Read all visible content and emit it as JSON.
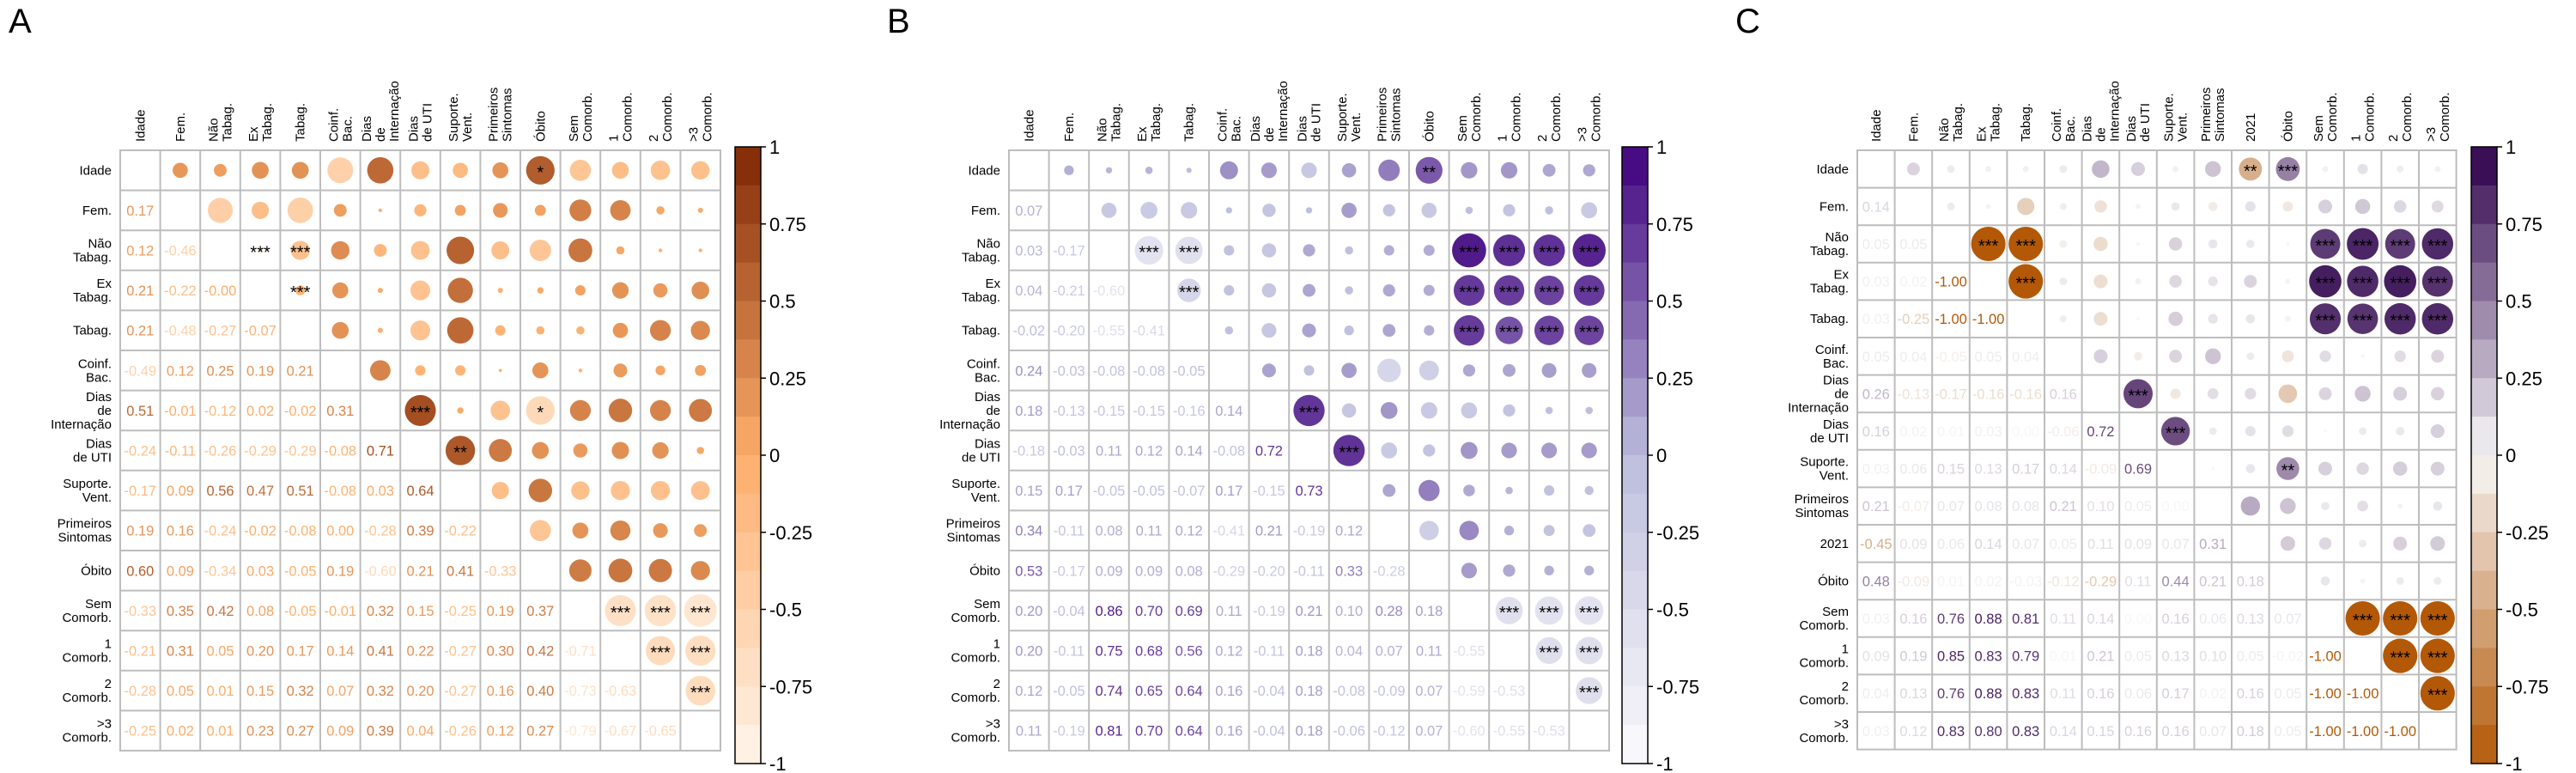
{
  "chart_data": [
    {
      "type": "heatmap",
      "panel_label": "A",
      "palette": "orange",
      "colors": {
        "neg": "#fff5eb",
        "mid": "#fdae6b",
        "pos": "#7f2704"
      },
      "col_labels": [
        [
          "Idade"
        ],
        [
          "Fem."
        ],
        [
          "Não",
          "Tabag."
        ],
        [
          "Ex",
          "Tabag."
        ],
        [
          "Tabag."
        ],
        [
          "Coinf.",
          "Bac."
        ],
        [
          "Dias",
          "de",
          "Internação"
        ],
        [
          "Dias",
          "de UTI"
        ],
        [
          "Suporte.",
          "Vent."
        ],
        [
          "Primeiros",
          "Sintomas"
        ],
        [
          "Óbito"
        ],
        [
          "Sem",
          "Comorb."
        ],
        [
          "1",
          "Comorb."
        ],
        [
          "2",
          "Comorb."
        ],
        [
          ">3",
          "Comorb."
        ]
      ],
      "row_labels": [
        [
          "Idade"
        ],
        [
          "Fem."
        ],
        [
          "Não",
          "Tabag."
        ],
        [
          "Ex",
          "Tabag."
        ],
        [
          "Tabag."
        ],
        [
          "Coinf.",
          "Bac."
        ],
        [
          "Dias",
          "de",
          "Internação"
        ],
        [
          "Dias",
          "de UTI"
        ],
        [
          "Suporte.",
          "Vent."
        ],
        [
          "Primeiros",
          "Sintomas"
        ],
        [
          "Óbito"
        ],
        [
          "Sem",
          "Comorb."
        ],
        [
          "1",
          "Comorb."
        ],
        [
          "2",
          "Comorb."
        ],
        [
          ">3",
          "Comorb."
        ]
      ],
      "lower": [
        [],
        [
          "0.17"
        ],
        [
          "0.12",
          "-0.46"
        ],
        [
          "0.21",
          "-0.22",
          "-0.00"
        ],
        [
          "0.21",
          "-0.48",
          "-0.27",
          "-0.07"
        ],
        [
          "-0.49",
          "0.12",
          "0.25",
          "0.19",
          "0.21"
        ],
        [
          "0.51",
          "-0.01",
          "-0.12",
          "0.02",
          "-0.02",
          "0.31"
        ],
        [
          "-0.24",
          "-0.11",
          "-0.26",
          "-0.29",
          "-0.29",
          "-0.08",
          "0.71"
        ],
        [
          "-0.17",
          "0.09",
          "0.56",
          "0.47",
          "0.51",
          "-0.08",
          "0.03",
          "0.64"
        ],
        [
          "0.19",
          "0.16",
          "-0.24",
          "-0.02",
          "-0.08",
          "0.00",
          "-0.28",
          "0.39",
          "-0.22"
        ],
        [
          "0.60",
          "0.09",
          "-0.34",
          "0.03",
          "-0.05",
          "0.19",
          "-0.60",
          "0.21",
          "0.41",
          "-0.33"
        ],
        [
          "-0.33",
          "0.35",
          "0.42",
          "0.08",
          "-0.05",
          "-0.01",
          "0.32",
          "0.15",
          "-0.25",
          "0.19",
          "0.37"
        ],
        [
          "-0.21",
          "0.31",
          "0.05",
          "0.20",
          "0.17",
          "0.14",
          "0.41",
          "0.22",
          "-0.27",
          "0.30",
          "0.42",
          "-0.71"
        ],
        [
          "-0.28",
          "0.05",
          "0.01",
          "0.15",
          "0.32",
          "0.07",
          "0.32",
          "0.20",
          "-0.27",
          "0.16",
          "0.40",
          "-0.73",
          "-0.63"
        ],
        [
          "-0.25",
          "0.02",
          "0.01",
          "0.23",
          "0.27",
          "0.09",
          "0.39",
          "0.04",
          "-0.26",
          "0.12",
          "0.27",
          "-0.79",
          "-0.67",
          "-0.65"
        ]
      ],
      "stars": [
        {
          "r": 0,
          "c": 10,
          "s": "*"
        },
        {
          "r": 2,
          "c": 3,
          "s": "***"
        },
        {
          "r": 2,
          "c": 4,
          "s": "***"
        },
        {
          "r": 3,
          "c": 4,
          "s": "***"
        },
        {
          "r": 6,
          "c": 7,
          "s": "***"
        },
        {
          "r": 6,
          "c": 10,
          "s": "*"
        },
        {
          "r": 7,
          "c": 8,
          "s": "**"
        },
        {
          "r": 11,
          "c": 12,
          "s": "***"
        },
        {
          "r": 11,
          "c": 13,
          "s": "***"
        },
        {
          "r": 11,
          "c": 14,
          "s": "***"
        },
        {
          "r": 12,
          "c": 13,
          "s": "***"
        },
        {
          "r": 12,
          "c": 14,
          "s": "***"
        },
        {
          "r": 13,
          "c": 14,
          "s": "***"
        }
      ],
      "colorbar_ticks": [
        "1",
        "0.75",
        "0.5",
        "0.25",
        "0",
        "-0.25",
        "-0.5",
        "-0.75",
        "-1"
      ],
      "value_range": [
        -1,
        1
      ]
    },
    {
      "type": "heatmap",
      "panel_label": "B",
      "palette": "purple",
      "colors": {
        "neg": "#fcfbfd",
        "mid": "#bcbddc",
        "pos": "#3f007d"
      },
      "col_labels": [
        [
          "Idade"
        ],
        [
          "Fem."
        ],
        [
          "Não",
          "Tabag."
        ],
        [
          "Ex",
          "Tabag."
        ],
        [
          "Tabag."
        ],
        [
          "Coinf.",
          "Bac."
        ],
        [
          "Dias",
          "de",
          "Internação"
        ],
        [
          "Dias",
          "de UTI"
        ],
        [
          "Suporte.",
          "Vent."
        ],
        [
          "Primeiros",
          "Sintomas"
        ],
        [
          "Óbito"
        ],
        [
          "Sem",
          "Comorb."
        ],
        [
          "1",
          "Comorb."
        ],
        [
          "2",
          "Comorb."
        ],
        [
          ">3",
          "Comorb."
        ]
      ],
      "row_labels": [
        [
          "Idade"
        ],
        [
          "Fem."
        ],
        [
          "Não",
          "Tabag."
        ],
        [
          "Ex",
          "Tabag."
        ],
        [
          "Tabag."
        ],
        [
          "Coinf.",
          "Bac."
        ],
        [
          "Dias",
          "de",
          "Internação"
        ],
        [
          "Dias",
          "de UTI"
        ],
        [
          "Suporte.",
          "Vent."
        ],
        [
          "Primeiros",
          "Sintomas"
        ],
        [
          "Óbito"
        ],
        [
          "Sem",
          "Comorb."
        ],
        [
          "1",
          "Comorb."
        ],
        [
          "2",
          "Comorb."
        ],
        [
          ">3",
          "Comorb."
        ]
      ],
      "lower": [
        [],
        [
          "0.07"
        ],
        [
          "0.03",
          "-0.17"
        ],
        [
          "0.04",
          "-0.21",
          "-0.60"
        ],
        [
          "-0.02",
          "-0.20",
          "-0.55",
          "-0.41"
        ],
        [
          "0.24",
          "-0.03",
          "-0.08",
          "-0.08",
          "-0.05"
        ],
        [
          "0.18",
          "-0.13",
          "-0.15",
          "-0.15",
          "-0.16",
          "0.14"
        ],
        [
          "-0.18",
          "-0.03",
          "0.11",
          "0.12",
          "0.14",
          "-0.08",
          "0.72"
        ],
        [
          "0.15",
          "0.17",
          "-0.05",
          "-0.05",
          "-0.07",
          "0.17",
          "-0.15",
          "0.73"
        ],
        [
          "0.34",
          "-0.11",
          "0.08",
          "0.11",
          "0.12",
          "-0.41",
          "0.21",
          "-0.19",
          "0.12"
        ],
        [
          "0.53",
          "-0.17",
          "0.09",
          "0.09",
          "0.08",
          "-0.29",
          "-0.20",
          "-0.11",
          "0.33",
          "-0.28"
        ],
        [
          "0.20",
          "-0.04",
          "0.86",
          "0.70",
          "0.69",
          "0.11",
          "-0.19",
          "0.21",
          "0.10",
          "0.28",
          "0.18"
        ],
        [
          "0.20",
          "-0.11",
          "0.75",
          "0.68",
          "0.56",
          "0.12",
          "-0.11",
          "0.18",
          "0.04",
          "0.07",
          "0.11",
          "-0.55"
        ],
        [
          "0.12",
          "-0.05",
          "0.74",
          "0.65",
          "0.64",
          "0.16",
          "-0.04",
          "0.18",
          "-0.08",
          "-0.09",
          "0.07",
          "-0.59",
          "-0.53"
        ],
        [
          "0.11",
          "-0.19",
          "0.81",
          "0.70",
          "0.64",
          "0.16",
          "-0.04",
          "0.18",
          "-0.06",
          "-0.12",
          "0.07",
          "-0.60",
          "-0.55",
          "-0.53"
        ]
      ],
      "stars": [
        {
          "r": 0,
          "c": 10,
          "s": "**"
        },
        {
          "r": 2,
          "c": 3,
          "s": "***"
        },
        {
          "r": 2,
          "c": 4,
          "s": "***"
        },
        {
          "r": 2,
          "c": 11,
          "s": "***"
        },
        {
          "r": 2,
          "c": 12,
          "s": "***"
        },
        {
          "r": 2,
          "c": 13,
          "s": "***"
        },
        {
          "r": 2,
          "c": 14,
          "s": "***"
        },
        {
          "r": 3,
          "c": 4,
          "s": "***"
        },
        {
          "r": 3,
          "c": 11,
          "s": "***"
        },
        {
          "r": 3,
          "c": 12,
          "s": "***"
        },
        {
          "r": 3,
          "c": 13,
          "s": "***"
        },
        {
          "r": 3,
          "c": 14,
          "s": "***"
        },
        {
          "r": 4,
          "c": 11,
          "s": "***"
        },
        {
          "r": 4,
          "c": 12,
          "s": "***"
        },
        {
          "r": 4,
          "c": 13,
          "s": "***"
        },
        {
          "r": 4,
          "c": 14,
          "s": "***"
        },
        {
          "r": 6,
          "c": 7,
          "s": "***"
        },
        {
          "r": 7,
          "c": 8,
          "s": "***"
        },
        {
          "r": 11,
          "c": 12,
          "s": "***"
        },
        {
          "r": 11,
          "c": 13,
          "s": "***"
        },
        {
          "r": 11,
          "c": 14,
          "s": "***"
        },
        {
          "r": 12,
          "c": 13,
          "s": "***"
        },
        {
          "r": 12,
          "c": 14,
          "s": "***"
        },
        {
          "r": 13,
          "c": 14,
          "s": "***"
        }
      ],
      "colorbar_ticks": [
        "1",
        "0.75",
        "0.5",
        "0.25",
        "0",
        "-0.25",
        "-0.5",
        "-0.75",
        "-1"
      ],
      "value_range": [
        -1,
        1
      ]
    },
    {
      "type": "heatmap",
      "panel_label": "C",
      "palette": "purple-orange",
      "colors": {
        "neg": "#b35806",
        "mid": "#f7f7f7",
        "pos": "#2d004b"
      },
      "col_labels": [
        [
          "Idade"
        ],
        [
          "Fem."
        ],
        [
          "Não",
          "Tabag."
        ],
        [
          "Ex",
          "Tabag."
        ],
        [
          "Tabag."
        ],
        [
          "Coinf.",
          "Bac."
        ],
        [
          "Dias",
          "de",
          "Internação"
        ],
        [
          "Dias",
          "de UTI"
        ],
        [
          "Suporte.",
          "Vent."
        ],
        [
          "Primeiros",
          "Sintomas"
        ],
        [
          "2021"
        ],
        [
          "Óbito"
        ],
        [
          "Sem",
          "Comorb."
        ],
        [
          "1",
          "Comorb."
        ],
        [
          "2",
          "Comorb."
        ],
        [
          ">3",
          "Comorb."
        ]
      ],
      "row_labels": [
        [
          "Idade"
        ],
        [
          "Fem."
        ],
        [
          "Não",
          "Tabag."
        ],
        [
          "Ex",
          "Tabag."
        ],
        [
          "Tabag."
        ],
        [
          "Coinf.",
          "Bac."
        ],
        [
          "Dias",
          "de",
          "Internação"
        ],
        [
          "Dias",
          "de UTI"
        ],
        [
          "Suporte.",
          "Vent."
        ],
        [
          "Primeiros",
          "Sintomas"
        ],
        [
          "2021"
        ],
        [
          "Óbito"
        ],
        [
          "Sem",
          "Comorb."
        ],
        [
          "1",
          "Comorb."
        ],
        [
          "2",
          "Comorb."
        ],
        [
          ">3",
          "Comorb."
        ]
      ],
      "lower": [
        [],
        [
          "0.14"
        ],
        [
          "0.05",
          "0.05"
        ],
        [
          "0.03",
          "0.02",
          "-1.00"
        ],
        [
          "0.03",
          "-0.25",
          "-1.00",
          "-1.00"
        ],
        [
          "0.05",
          "0.04",
          "-0.05",
          "0.05",
          "0.04"
        ],
        [
          "0.26",
          "-0.13",
          "-0.17",
          "-0.16",
          "-0.16",
          "0.16"
        ],
        [
          "0.16",
          "0.02",
          "0.01",
          "0.03",
          "0.00",
          "-0.06",
          "0.72"
        ],
        [
          "0.03",
          "0.06",
          "0.15",
          "0.13",
          "0.17",
          "0.14",
          "-0.09",
          "0.69"
        ],
        [
          "0.21",
          "-0.07",
          "0.07",
          "0.08",
          "0.08",
          "0.21",
          "0.10",
          "0.05",
          "0.00"
        ],
        [
          "-0.45",
          "0.09",
          "0.06",
          "0.14",
          "0.07",
          "0.05",
          "0.11",
          "0.09",
          "0.07",
          "0.31"
        ],
        [
          "0.48",
          "-0.09",
          "0.01",
          "0.02",
          "-0.03",
          "-0.12",
          "-0.29",
          "0.11",
          "0.44",
          "0.21",
          "0.18"
        ],
        [
          "0.03",
          "0.16",
          "0.76",
          "0.88",
          "0.81",
          "0.11",
          "0.14",
          "0.00",
          "0.16",
          "0.06",
          "0.13",
          "0.07"
        ],
        [
          "0.09",
          "0.19",
          "0.85",
          "0.83",
          "0.79",
          "0.01",
          "0.21",
          "0.05",
          "0.13",
          "0.10",
          "0.05",
          "-0.02",
          "-1.00"
        ],
        [
          "0.04",
          "0.13",
          "0.76",
          "0.88",
          "0.83",
          "0.11",
          "0.16",
          "0.06",
          "0.17",
          "0.02",
          "0.16",
          "0.05",
          "-1.00",
          "-1.00"
        ],
        [
          "0.03",
          "0.12",
          "0.83",
          "0.80",
          "0.83",
          "0.14",
          "0.15",
          "0.16",
          "0.16",
          "0.07",
          "0.18",
          "0.05",
          "-1.00",
          "-1.00",
          "-1.00"
        ]
      ],
      "stars": [
        {
          "r": 0,
          "c": 10,
          "s": "**"
        },
        {
          "r": 0,
          "c": 11,
          "s": "***"
        },
        {
          "r": 2,
          "c": 3,
          "s": "***"
        },
        {
          "r": 2,
          "c": 4,
          "s": "***"
        },
        {
          "r": 2,
          "c": 12,
          "s": "***"
        },
        {
          "r": 2,
          "c": 13,
          "s": "***"
        },
        {
          "r": 2,
          "c": 14,
          "s": "***"
        },
        {
          "r": 2,
          "c": 15,
          "s": "***"
        },
        {
          "r": 3,
          "c": 4,
          "s": "***"
        },
        {
          "r": 3,
          "c": 12,
          "s": "***"
        },
        {
          "r": 3,
          "c": 13,
          "s": "***"
        },
        {
          "r": 3,
          "c": 14,
          "s": "***"
        },
        {
          "r": 3,
          "c": 15,
          "s": "***"
        },
        {
          "r": 4,
          "c": 12,
          "s": "***"
        },
        {
          "r": 4,
          "c": 13,
          "s": "***"
        },
        {
          "r": 4,
          "c": 14,
          "s": "***"
        },
        {
          "r": 4,
          "c": 15,
          "s": "***"
        },
        {
          "r": 6,
          "c": 7,
          "s": "***"
        },
        {
          "r": 7,
          "c": 8,
          "s": "***"
        },
        {
          "r": 8,
          "c": 11,
          "s": "**"
        },
        {
          "r": 12,
          "c": 13,
          "s": "***"
        },
        {
          "r": 12,
          "c": 14,
          "s": "***"
        },
        {
          "r": 12,
          "c": 15,
          "s": "***"
        },
        {
          "r": 13,
          "c": 14,
          "s": "***"
        },
        {
          "r": 13,
          "c": 15,
          "s": "***"
        },
        {
          "r": 14,
          "c": 15,
          "s": "***"
        }
      ],
      "colorbar_ticks": [
        "1",
        "0.75",
        "0.5",
        "0.25",
        "0",
        "-0.25",
        "-0.5",
        "-0.75",
        "-1"
      ],
      "value_range": [
        -1,
        1
      ]
    }
  ]
}
